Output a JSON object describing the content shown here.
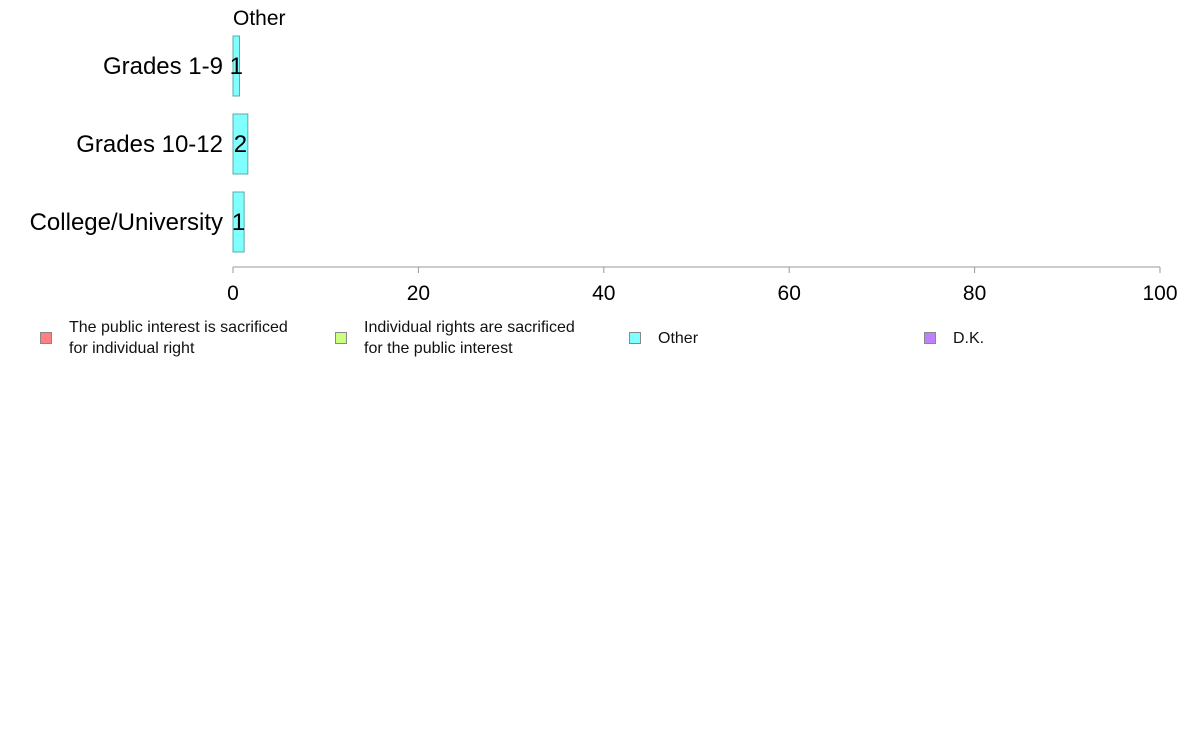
{
  "chart_data": {
    "type": "bar",
    "orientation": "horizontal",
    "panel_title": "Other",
    "categories": [
      "Grades 1-9",
      "Grades 10-12",
      "College/University"
    ],
    "series": [
      {
        "name": "Other",
        "color": "#80FFFF",
        "values": [
          0.7,
          1.6,
          1.2
        ],
        "labels": [
          "1",
          "2",
          "1"
        ]
      }
    ],
    "xlim": [
      0,
      100
    ],
    "x_ticks": [
      0,
      20,
      40,
      60,
      80,
      100
    ],
    "xlabel": "",
    "ylabel": "",
    "grid": false,
    "legend_position": "bottom"
  },
  "legend": {
    "items": [
      {
        "label": "The public interest is sacrificed\nfor individual right",
        "color": "#FF8080"
      },
      {
        "label": "Individual rights are sacrificed\nfor the public interest",
        "color": "#CCFF80"
      },
      {
        "label": "Other",
        "color": "#80FFFF"
      },
      {
        "label": "D.K.",
        "color": "#BF80FF"
      }
    ]
  }
}
